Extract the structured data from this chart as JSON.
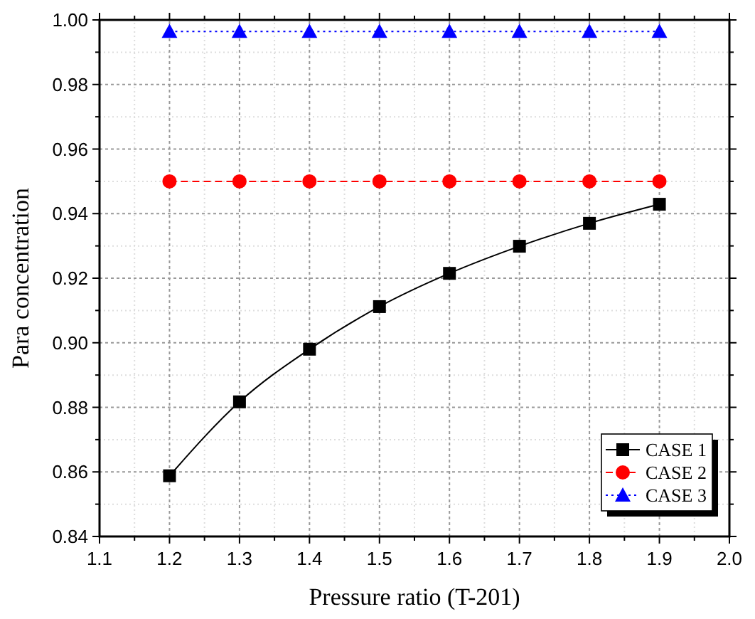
{
  "chart_data": {
    "type": "line",
    "xlabel": "Pressure ratio (T-201)",
    "ylabel": "Para concentration",
    "x": [
      1.2,
      1.3,
      1.4,
      1.5,
      1.6,
      1.7,
      1.8,
      1.9
    ],
    "series": [
      {
        "name": "CASE 1",
        "color": "#000000",
        "marker": "square",
        "line_style": "solid",
        "values": [
          0.8588,
          0.8817,
          0.898,
          0.9112,
          0.9215,
          0.9299,
          0.937,
          0.9429
        ]
      },
      {
        "name": "CASE 2",
        "color": "#ff0000",
        "marker": "circle",
        "line_style": "dashed",
        "values": [
          0.95,
          0.95,
          0.95,
          0.95,
          0.95,
          0.95,
          0.95,
          0.95
        ]
      },
      {
        "name": "CASE 3",
        "color": "#0000ff",
        "marker": "triangle",
        "line_style": "dotted",
        "values": [
          0.9964,
          0.9964,
          0.9964,
          0.9964,
          0.9964,
          0.9964,
          0.9964,
          0.9964
        ]
      }
    ],
    "xlim": [
      1.1,
      2.0
    ],
    "xticks": [
      1.1,
      1.2,
      1.3,
      1.4,
      1.5,
      1.6,
      1.7,
      1.8,
      1.9,
      {
        "value": 2.0,
        "label": "2.0"
      }
    ],
    "ylim": [
      0.84,
      1.0
    ],
    "yticks": [
      {
        "value": 0.84,
        "label": "0.84"
      },
      {
        "value": 0.86,
        "label": "0.86"
      },
      {
        "value": 0.88,
        "label": "0.88"
      },
      {
        "value": 0.9,
        "label": "0.90"
      },
      {
        "value": 0.92,
        "label": "0.92"
      },
      {
        "value": 0.94,
        "label": "0.94"
      },
      {
        "value": 0.96,
        "label": "0.96"
      },
      {
        "value": 0.98,
        "label": "0.98"
      },
      {
        "value": 1.0,
        "label": "1.00"
      }
    ],
    "grid": true,
    "legend": "bottom right"
  }
}
